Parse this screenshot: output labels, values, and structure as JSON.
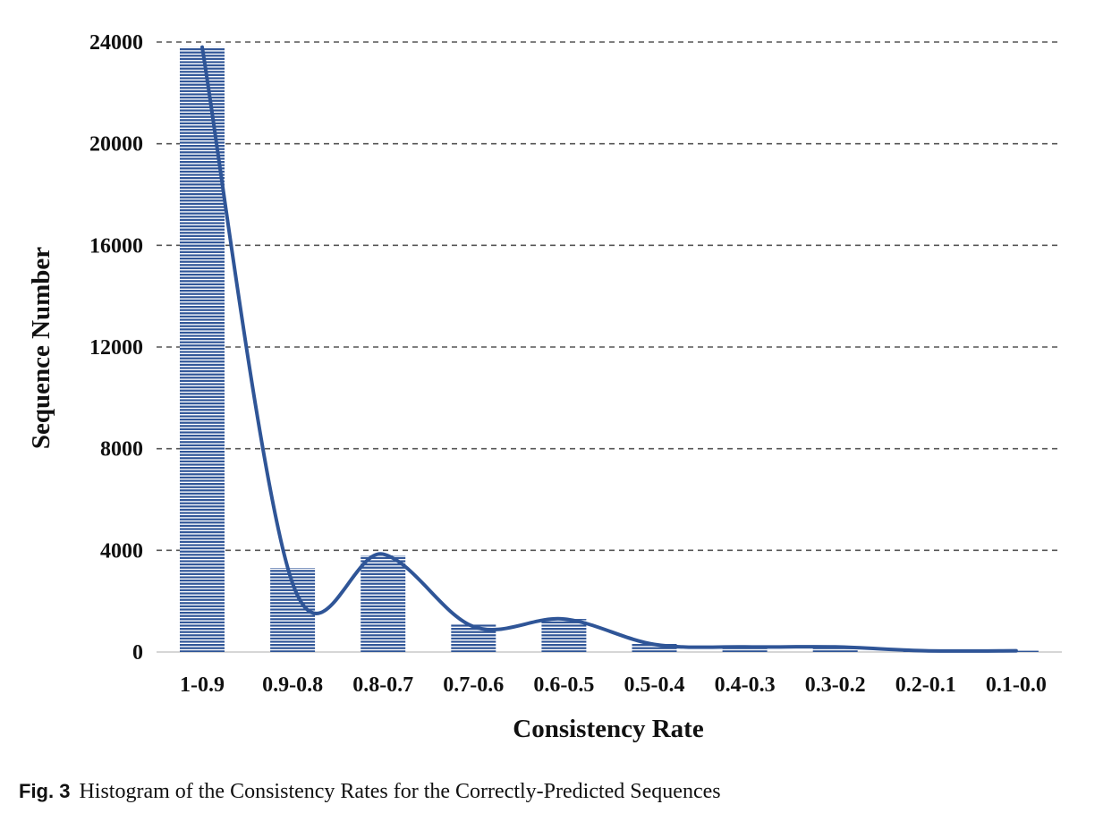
{
  "chart_data": {
    "type": "bar",
    "categories": [
      "1-0.9",
      "0.9-0.8",
      "0.8-0.7",
      "0.7-0.6",
      "0.6-0.5",
      "0.5-0.4",
      "0.4-0.3",
      "0.3-0.2",
      "0.2-0.1",
      "0.1-0.0"
    ],
    "values": [
      23800,
      3300,
      3800,
      1100,
      1300,
      350,
      200,
      220,
      60,
      50
    ],
    "trend_line": [
      23800,
      2700,
      3850,
      1000,
      1300,
      300,
      200,
      200,
      50,
      50
    ],
    "xlabel": "Consistency Rate",
    "ylabel": "Sequence Number",
    "ylim": [
      0,
      24000
    ],
    "yticks": [
      0,
      4000,
      8000,
      12000,
      16000,
      20000,
      24000
    ],
    "grid": "horizontal dashed",
    "bar_fill": "horizontal hatch",
    "colors": {
      "bar": "#2f5597",
      "line": "#2f5597"
    }
  },
  "caption": {
    "label": "Fig. 3",
    "text": "Histogram of the Consistency Rates for the Correctly-Predicted Sequences"
  }
}
